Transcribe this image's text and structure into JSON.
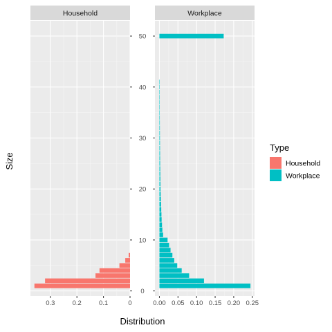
{
  "chart_data": {
    "type": "bar",
    "orientation": "horizontal",
    "facets": [
      "Household",
      "Workplace"
    ],
    "xlabel": "Distribution",
    "ylabel": "Size",
    "ylim": [
      -1,
      53
    ],
    "y_ticks": [
      0,
      10,
      20,
      30,
      40,
      50
    ],
    "household_x_ticks": [
      0.3,
      0.2,
      0.1,
      0
    ],
    "household_x_tick_labels": [
      "0.3",
      "0.2",
      "0.1",
      "0"
    ],
    "household_xlim_reversed": [
      0.375,
      0
    ],
    "workplace_x_ticks": [
      0,
      0.05,
      0.1,
      0.15,
      0.2,
      0.25
    ],
    "workplace_x_tick_labels": [
      "0.00",
      "0.05",
      "0.10",
      "0.15",
      "0.20",
      "0.25"
    ],
    "workplace_xlim": [
      -0.012,
      0.256
    ],
    "legend": {
      "title": "Type",
      "position": "right",
      "entries": [
        {
          "label": "Household",
          "color": "#F8766D"
        },
        {
          "label": "Workplace",
          "color": "#00BFC4"
        }
      ]
    },
    "series": [
      {
        "name": "Household",
        "color": "#F8766D",
        "sizes": [
          1,
          2,
          3,
          4,
          5,
          6,
          7
        ],
        "values": [
          0.36,
          0.32,
          0.13,
          0.115,
          0.04,
          0.018,
          0.005
        ]
      },
      {
        "name": "Workplace",
        "color": "#00BFC4",
        "sizes": [
          1,
          2,
          3,
          4,
          5,
          6,
          7,
          8,
          9,
          10,
          11,
          12,
          13,
          14,
          15,
          16,
          17,
          18,
          19,
          20,
          21,
          22,
          23,
          24,
          25,
          26,
          27,
          28,
          29,
          30,
          31,
          32,
          33,
          34,
          35,
          36,
          37,
          38,
          39,
          40,
          41,
          50
        ],
        "values": [
          0.245,
          0.12,
          0.08,
          0.06,
          0.048,
          0.04,
          0.035,
          0.03,
          0.026,
          0.022,
          0.01,
          0.008,
          0.007,
          0.006,
          0.0055,
          0.005,
          0.0045,
          0.004,
          0.0035,
          0.003,
          0.0028,
          0.0026,
          0.0024,
          0.0022,
          0.002,
          0.0019,
          0.0018,
          0.0017,
          0.0016,
          0.0015,
          0.0014,
          0.0013,
          0.0012,
          0.0011,
          0.001,
          0.001,
          0.001,
          0.001,
          0.001,
          0.001,
          0.001,
          0.173
        ]
      }
    ],
    "grid": true
  }
}
